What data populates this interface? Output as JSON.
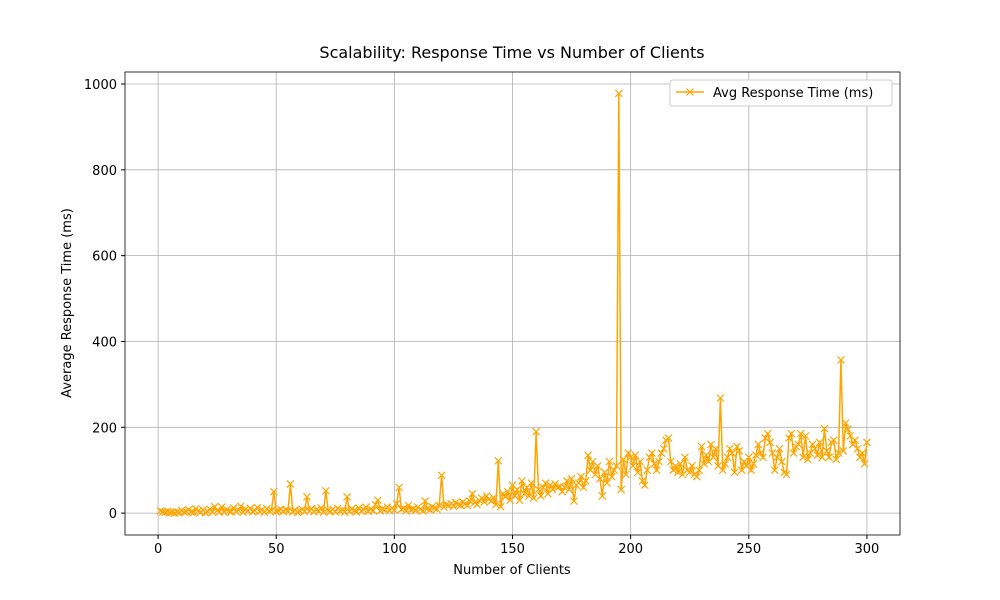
{
  "chart_data": {
    "type": "line",
    "title": "Scalability: Response Time vs Number of Clients",
    "x_label": "Number of Clients",
    "y_label": "Average Response Time (ms)",
    "x": [
      1,
      2,
      3,
      4,
      5,
      6,
      7,
      8,
      9,
      10,
      11,
      12,
      13,
      14,
      15,
      16,
      17,
      18,
      19,
      20,
      21,
      22,
      23,
      24,
      25,
      26,
      27,
      28,
      29,
      30,
      31,
      32,
      33,
      34,
      35,
      36,
      37,
      38,
      39,
      40,
      41,
      42,
      43,
      44,
      45,
      46,
      47,
      48,
      49,
      50,
      51,
      52,
      53,
      54,
      55,
      56,
      57,
      58,
      59,
      60,
      61,
      62,
      63,
      64,
      65,
      66,
      67,
      68,
      69,
      70,
      71,
      72,
      73,
      74,
      75,
      76,
      77,
      78,
      79,
      80,
      81,
      82,
      83,
      84,
      85,
      86,
      87,
      88,
      89,
      90,
      91,
      92,
      93,
      94,
      95,
      96,
      97,
      98,
      99,
      100,
      101,
      102,
      103,
      104,
      105,
      106,
      107,
      108,
      109,
      110,
      111,
      112,
      113,
      114,
      115,
      116,
      117,
      118,
      119,
      120,
      121,
      122,
      123,
      124,
      125,
      126,
      127,
      128,
      129,
      130,
      131,
      132,
      133,
      134,
      135,
      136,
      137,
      138,
      139,
      140,
      141,
      142,
      143,
      144,
      145,
      146,
      147,
      148,
      149,
      150,
      151,
      152,
      153,
      154,
      155,
      156,
      157,
      158,
      159,
      160,
      161,
      162,
      163,
      164,
      165,
      166,
      167,
      168,
      169,
      170,
      171,
      172,
      173,
      174,
      175,
      176,
      177,
      178,
      179,
      180,
      181,
      182,
      183,
      184,
      185,
      186,
      187,
      188,
      189,
      190,
      191,
      192,
      193,
      194,
      195,
      196,
      197,
      198,
      199,
      200,
      201,
      202,
      203,
      204,
      205,
      206,
      207,
      208,
      209,
      210,
      211,
      212,
      213,
      214,
      215,
      216,
      217,
      218,
      219,
      220,
      221,
      222,
      223,
      224,
      225,
      226,
      227,
      228,
      229,
      230,
      231,
      232,
      233,
      234,
      235,
      236,
      237,
      238,
      239,
      240,
      241,
      242,
      243,
      244,
      245,
      246,
      247,
      248,
      249,
      250,
      251,
      252,
      253,
      254,
      255,
      256,
      257,
      258,
      259,
      260,
      261,
      262,
      263,
      264,
      265,
      266,
      267,
      268,
      269,
      270,
      271,
      272,
      273,
      274,
      275,
      276,
      277,
      278,
      279,
      280,
      281,
      282,
      283,
      284,
      285,
      286,
      287,
      288,
      289,
      290,
      291,
      292,
      293,
      294,
      295,
      296,
      297,
      298,
      299,
      300
    ],
    "series": [
      {
        "name": "Avg Response Time (ms)",
        "color": "#ffa500",
        "values": [
          5,
          3,
          2,
          4,
          1,
          2,
          0,
          3,
          1,
          6,
          2,
          4,
          8,
          3,
          1,
          10,
          5,
          2,
          7,
          1,
          4,
          9,
          2,
          15,
          6,
          3,
          14,
          2,
          8,
          5,
          3,
          12,
          4,
          7,
          16,
          2,
          9,
          5,
          11,
          3,
          6,
          13,
          4,
          8,
          2,
          10,
          5,
          7,
          50,
          3,
          6,
          9,
          4,
          8,
          5,
          68,
          3,
          7,
          2,
          5,
          9,
          4,
          38,
          6,
          10,
          3,
          8,
          5,
          12,
          2,
          52,
          6,
          4,
          9,
          3,
          11,
          5,
          8,
          2,
          38,
          4,
          10,
          6,
          3,
          12,
          5,
          8,
          14,
          4,
          9,
          6,
          20,
          30,
          5,
          10,
          8,
          14,
          6,
          12,
          7,
          22,
          60,
          9,
          12,
          5,
          18,
          8,
          10,
          6,
          14,
          9,
          5,
          28,
          10,
          8,
          15,
          12,
          9,
          18,
          88,
          14,
          20,
          18,
          22,
          16,
          25,
          20,
          18,
          26,
          22,
          18,
          28,
          45,
          24,
          20,
          30,
          35,
          26,
          40,
          32,
          28,
          36,
          20,
          122,
          15,
          45,
          38,
          50,
          30,
          65,
          40,
          55,
          30,
          75,
          45,
          60,
          40,
          70,
          35,
          190,
          55,
          40,
          60,
          70,
          45,
          65,
          55,
          68,
          60,
          62,
          50,
          60,
          75,
          55,
          80,
          28,
          65,
          70,
          85,
          60,
          75,
          135,
          100,
          120,
          90,
          110,
          80,
          40,
          95,
          70,
          120,
          85,
          100,
          110,
          978,
          55,
          125,
          90,
          140,
          130,
          110,
          135,
          95,
          120,
          75,
          65,
          100,
          130,
          140,
          115,
          100,
          120,
          140,
          150,
          170,
          175,
          120,
          100,
          110,
          95,
          115,
          90,
          130,
          100,
          95,
          110,
          90,
          85,
          100,
          155,
          115,
          135,
          120,
          160,
          130,
          150,
          110,
          268,
          100,
          115,
          130,
          150,
          140,
          95,
          155,
          145,
          100,
          120,
          110,
          130,
          100,
          115,
          135,
          160,
          140,
          130,
          175,
          185,
          165,
          140,
          100,
          130,
          150,
          120,
          95,
          90,
          175,
          185,
          140,
          155,
          160,
          185,
          130,
          180,
          125,
          140,
          160,
          150,
          135,
          165,
          130,
          197,
          145,
          130,
          165,
          170,
          125,
          140,
          357,
          145,
          210,
          195,
          180,
          160,
          170,
          150,
          130,
          140,
          115,
          165
        ]
      }
    ],
    "xlim": [
      -14,
      314
    ],
    "ylim": [
      -51,
      1028
    ],
    "xticks": [
      0,
      50,
      100,
      150,
      200,
      250,
      300
    ],
    "yticks": [
      0,
      200,
      400,
      600,
      800,
      1000
    ],
    "grid": true,
    "legend": "upper right"
  }
}
